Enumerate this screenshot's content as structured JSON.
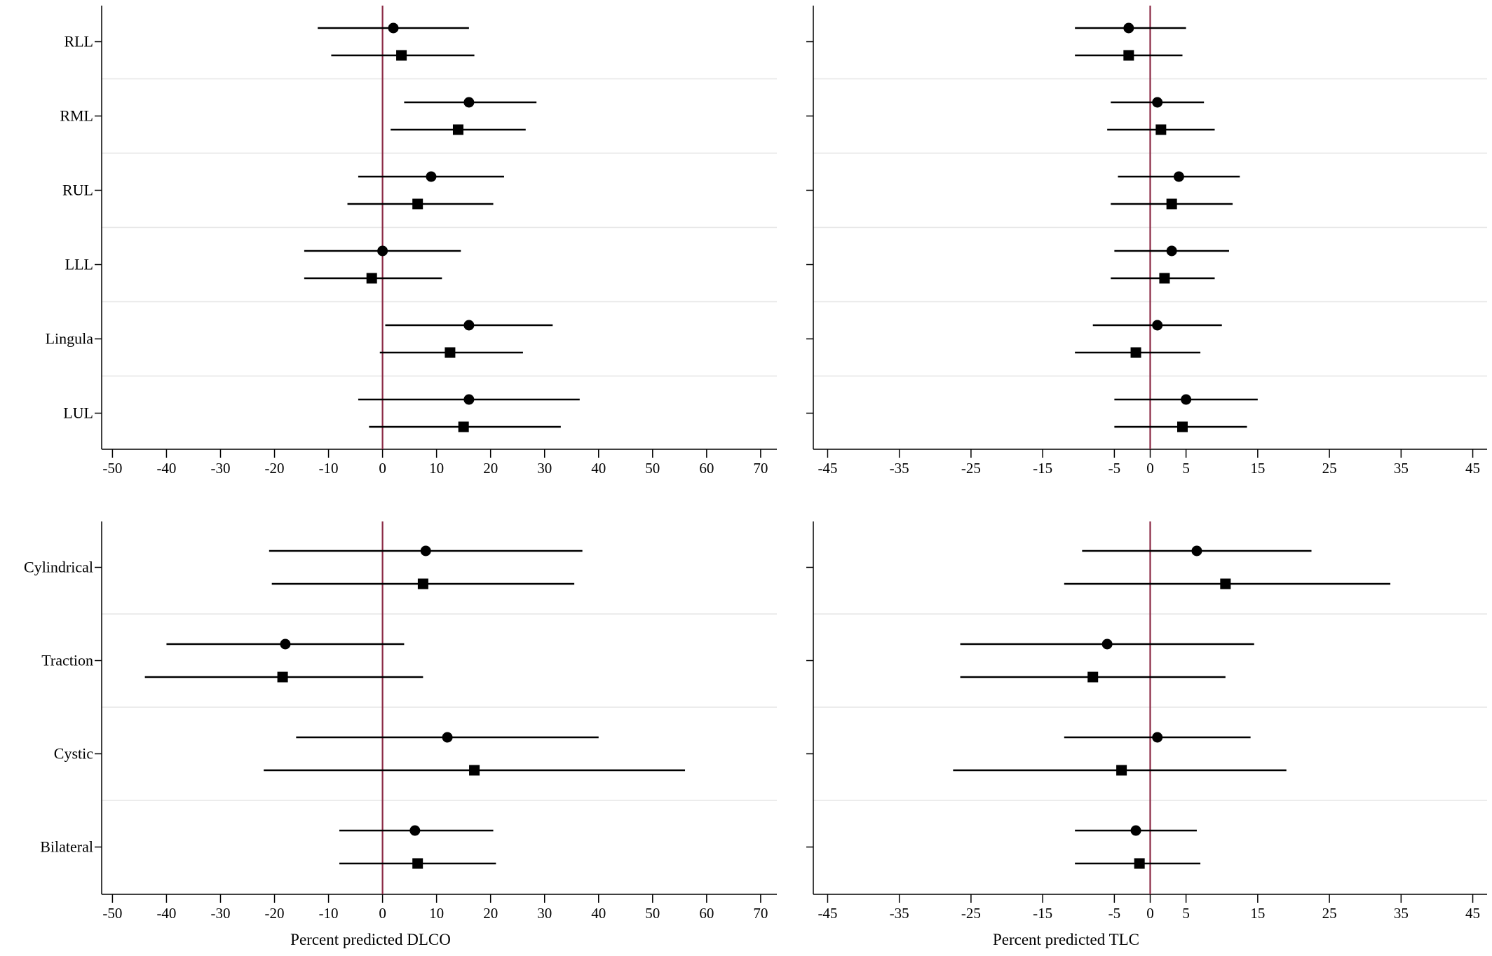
{
  "figure": {
    "series_names": [
      "",
      ""
    ],
    "colors": {
      "reference_line": "#8b2a45",
      "marker": "#000000",
      "grid": "#e6e6e6"
    }
  },
  "chart_data": [
    {
      "type": "forest",
      "panel": "top-left",
      "xlabel": "",
      "ylabel": "",
      "xlim": [
        -52,
        73
      ],
      "xticks": [
        -50,
        -40,
        -30,
        -20,
        -10,
        0,
        10,
        20,
        30,
        40,
        50,
        60,
        70
      ],
      "reference_line": 0,
      "categories": [
        "RLL",
        "RML",
        "RUL",
        "LLL",
        "Lingula",
        "LUL"
      ],
      "series": [
        {
          "name": "",
          "marker": "circle",
          "estimates": [
            2,
            16,
            9,
            0,
            16,
            16
          ],
          "ci_low": [
            -12,
            4,
            -4.5,
            -14.5,
            0.5,
            -4.5
          ],
          "ci_high": [
            16,
            28.5,
            22.5,
            14.5,
            31.5,
            36.5
          ]
        },
        {
          "name": "",
          "marker": "square",
          "estimates": [
            3.5,
            14,
            6.5,
            -2,
            12.5,
            15
          ],
          "ci_low": [
            -9.5,
            1.5,
            -6.5,
            -14.5,
            -0.5,
            -2.5
          ],
          "ci_high": [
            17,
            26.5,
            20.5,
            11,
            26,
            33
          ]
        }
      ]
    },
    {
      "type": "forest",
      "panel": "top-right",
      "xlabel": "",
      "ylabel": "",
      "xlim": [
        -47,
        47
      ],
      "xticks": [
        -45,
        -35,
        -25,
        -15,
        -5,
        0,
        5,
        15,
        25,
        35,
        45
      ],
      "reference_line": 0,
      "categories": [
        "RLL",
        "RML",
        "RUL",
        "LLL",
        "Lingula",
        "LUL"
      ],
      "series": [
        {
          "name": "",
          "marker": "circle",
          "estimates": [
            -3,
            1,
            4,
            3,
            1,
            5
          ],
          "ci_low": [
            -10.5,
            -5.5,
            -4.5,
            -5,
            -8,
            -5
          ],
          "ci_high": [
            5,
            7.5,
            12.5,
            11,
            10,
            15
          ]
        },
        {
          "name": "",
          "marker": "square",
          "estimates": [
            -3,
            1.5,
            3,
            2,
            -2,
            4.5
          ],
          "ci_low": [
            -10.5,
            -6,
            -5.5,
            -5.5,
            -10.5,
            -5
          ],
          "ci_high": [
            4.5,
            9,
            11.5,
            9,
            7,
            13.5
          ]
        }
      ]
    },
    {
      "type": "forest",
      "panel": "bottom-left",
      "xlabel": "Percent predicted DLCO",
      "ylabel": "",
      "xlim": [
        -52,
        73
      ],
      "xticks": [
        -50,
        -40,
        -30,
        -20,
        -10,
        0,
        10,
        20,
        30,
        40,
        50,
        60,
        70
      ],
      "reference_line": 0,
      "categories": [
        "Cylindrical",
        "Traction",
        "Cystic",
        "Bilateral"
      ],
      "series": [
        {
          "name": "",
          "marker": "circle",
          "estimates": [
            8,
            -18,
            12,
            6
          ],
          "ci_low": [
            -21,
            -40,
            -16,
            -8
          ],
          "ci_high": [
            37,
            4,
            40,
            20.5
          ]
        },
        {
          "name": "",
          "marker": "square",
          "estimates": [
            7.5,
            -18.5,
            17,
            6.5
          ],
          "ci_low": [
            -20.5,
            -44,
            -22,
            -8
          ],
          "ci_high": [
            35.5,
            7.5,
            56,
            21
          ]
        }
      ]
    },
    {
      "type": "forest",
      "panel": "bottom-right",
      "xlabel": "Percent predicted TLC",
      "ylabel": "",
      "xlim": [
        -47,
        47
      ],
      "xticks": [
        -45,
        -35,
        -25,
        -15,
        -5,
        0,
        5,
        15,
        25,
        35,
        45
      ],
      "reference_line": 0,
      "categories": [
        "Cylindrical",
        "Traction",
        "Cystic",
        "Bilateral"
      ],
      "series": [
        {
          "name": "",
          "marker": "circle",
          "estimates": [
            6.5,
            -6,
            1,
            -2
          ],
          "ci_low": [
            -9.5,
            -26.5,
            -12,
            -10.5
          ],
          "ci_high": [
            22.5,
            14.5,
            14,
            6.5
          ]
        },
        {
          "name": "",
          "marker": "square",
          "estimates": [
            10.5,
            -8,
            -4,
            -1.5
          ],
          "ci_low": [
            -12,
            -26.5,
            -27.5,
            -10.5
          ],
          "ci_high": [
            33.5,
            10.5,
            19,
            7
          ]
        }
      ]
    }
  ]
}
